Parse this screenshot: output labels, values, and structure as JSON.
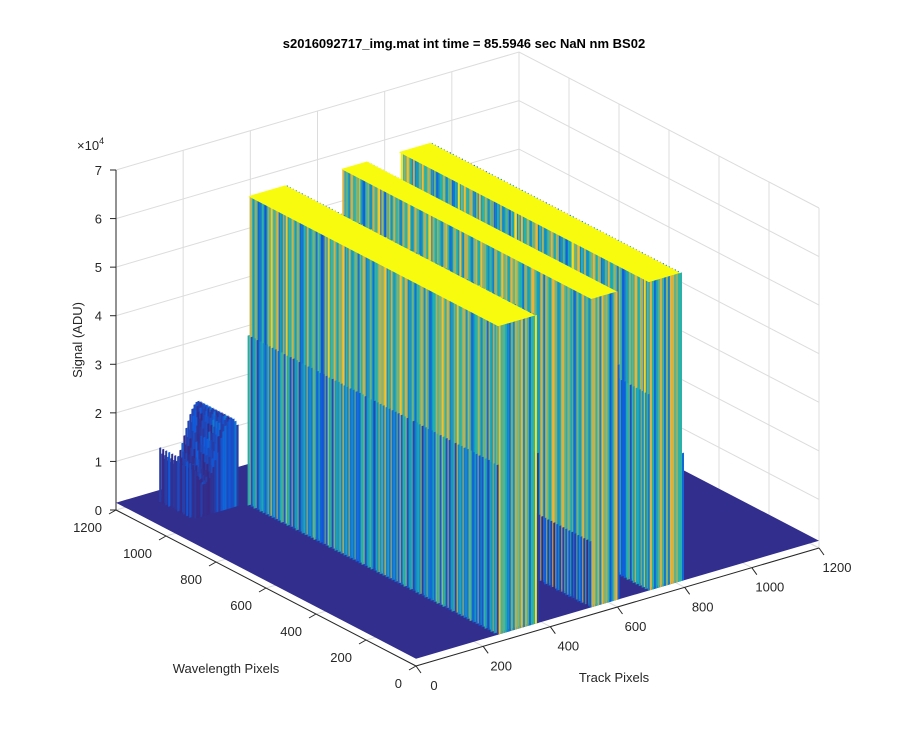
{
  "chart_data": {
    "type": "surface",
    "title": "s2016092717_img.mat int time = 85.5946 sec  NaN nm BS02",
    "xlabel": "Track Pixels",
    "ylabel": "Wavelength Pixels",
    "zlabel": "Signal (ADU)",
    "z_exponent_label": "×10",
    "z_exponent_power": "4",
    "xlim": [
      0,
      1200
    ],
    "ylim": [
      0,
      1200
    ],
    "zlim": [
      0,
      70000
    ],
    "xticks": [
      "0",
      "200",
      "400",
      "600",
      "800",
      "1000",
      "1200"
    ],
    "yticks": [
      "0",
      "200",
      "400",
      "600",
      "800",
      "1000",
      "1200"
    ],
    "zticks": [
      "0",
      "1",
      "2",
      "3",
      "4",
      "5",
      "6",
      "7"
    ],
    "grid": true,
    "colormap": "parula",
    "baseline_signal": 1500,
    "peaks": [
      {
        "track_center": 300,
        "track_width": 130,
        "wavelength_range": [
          0,
          1000
        ],
        "saturation": 65000
      },
      {
        "track_center": 560,
        "track_width": 90,
        "wavelength_range": [
          0,
          1000
        ],
        "saturation": 65000
      },
      {
        "track_center": 740,
        "track_width": 110,
        "wavelength_range": [
          0,
          1000
        ],
        "saturation": 65000
      }
    ],
    "shoulder": {
      "track_range": [
        80,
        220
      ],
      "wavelength_range": [
        1000,
        1150
      ],
      "signal": 20000
    }
  },
  "colors": {
    "low": "#352a87",
    "mid_low": "#0f5cdd",
    "mid": "#1ab2b2",
    "mid_high": "#f2b233",
    "high": "#f9fb0e",
    "grid": "#dcdcdc",
    "axis": "#262626"
  }
}
